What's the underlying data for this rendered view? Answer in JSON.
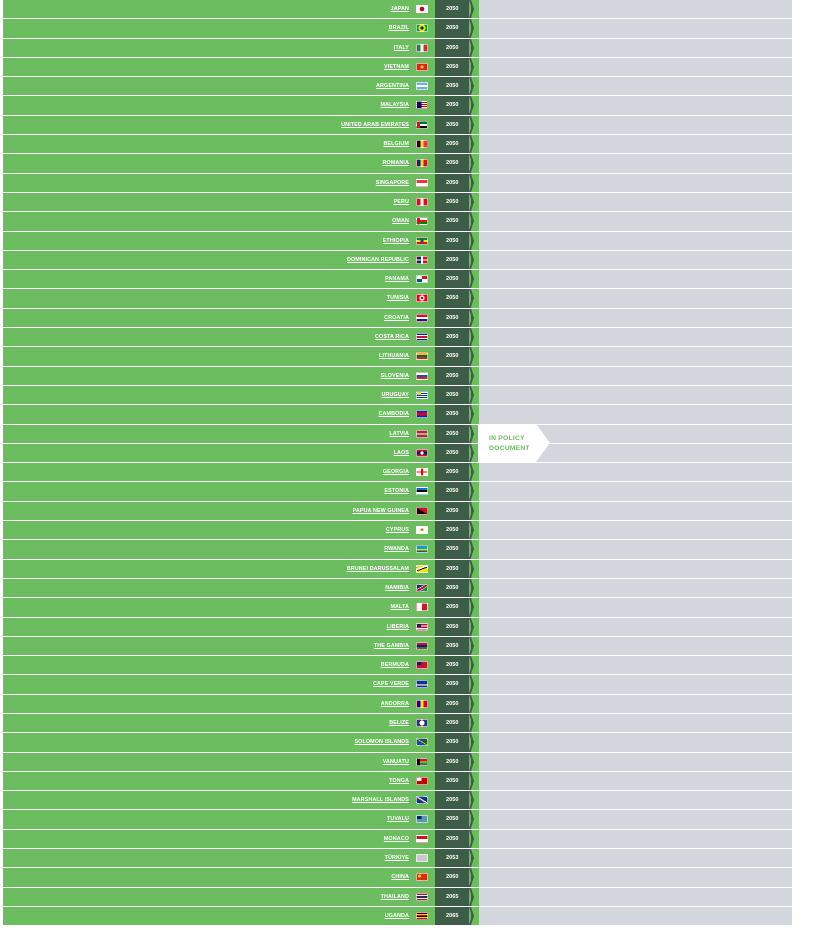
{
  "rows": [
    {
      "country": "JAPAN",
      "year": "2050",
      "flag": "japan-flag"
    },
    {
      "country": "BRAZIL",
      "year": "2050",
      "flag": "brazil-flag"
    },
    {
      "country": "ITALY",
      "year": "2050",
      "flag": "italy-flag"
    },
    {
      "country": "VIETNAM",
      "year": "2050",
      "flag": "vietnam-flag"
    },
    {
      "country": "ARGENTINA",
      "year": "2050",
      "flag": "argentina-flag"
    },
    {
      "country": "MALAYSIA",
      "year": "2050",
      "flag": "malaysia-flag"
    },
    {
      "country": "UNITED ARAB EMIRATES",
      "year": "2050",
      "flag": "uae-flag"
    },
    {
      "country": "BELGIUM",
      "year": "2050",
      "flag": "belgium-flag"
    },
    {
      "country": "ROMANIA",
      "year": "2050",
      "flag": "romania-flag"
    },
    {
      "country": "SINGAPORE",
      "year": "2050",
      "flag": "singapore-flag"
    },
    {
      "country": "PERU",
      "year": "2050",
      "flag": "peru-flag"
    },
    {
      "country": "OMAN",
      "year": "2050",
      "flag": "oman-flag"
    },
    {
      "country": "ETHIOPIA",
      "year": "2050",
      "flag": "ethiopia-flag"
    },
    {
      "country": "DOMINICAN REPUBLIC",
      "year": "2050",
      "flag": "dominican-republic-flag"
    },
    {
      "country": "PANAMA",
      "year": "2050",
      "flag": "panama-flag"
    },
    {
      "country": "TUNISIA",
      "year": "2050",
      "flag": "tunisia-flag"
    },
    {
      "country": "CROATIA",
      "year": "2050",
      "flag": "croatia-flag"
    },
    {
      "country": "COSTA RICA",
      "year": "2050",
      "flag": "costa-rica-flag"
    },
    {
      "country": "LITHUANIA",
      "year": "2050",
      "flag": "lithuania-flag"
    },
    {
      "country": "SLOVENIA",
      "year": "2050",
      "flag": "slovenia-flag"
    },
    {
      "country": "URUGUAY",
      "year": "2050",
      "flag": "uruguay-flag"
    },
    {
      "country": "CAMBODIA",
      "year": "2050",
      "flag": "cambodia-flag"
    },
    {
      "country": "LATVIA",
      "year": "2050",
      "flag": "latvia-flag"
    },
    {
      "country": "LAOS",
      "year": "2050",
      "flag": "laos-flag"
    },
    {
      "country": "GEORGIA",
      "year": "2050",
      "flag": "georgia-flag"
    },
    {
      "country": "ESTONIA",
      "year": "2050",
      "flag": "estonia-flag"
    },
    {
      "country": "PAPUA NEW GUINEA",
      "year": "2050",
      "flag": "papua-new-guinea-flag"
    },
    {
      "country": "CYPRUS",
      "year": "2050",
      "flag": "cyprus-flag"
    },
    {
      "country": "RWANDA",
      "year": "2050",
      "flag": "rwanda-flag"
    },
    {
      "country": "BRUNEI DARUSSALAM",
      "year": "2050",
      "flag": "brunei-flag"
    },
    {
      "country": "NAMIBIA",
      "year": "2050",
      "flag": "namibia-flag"
    },
    {
      "country": "MALTA",
      "year": "2050",
      "flag": "malta-flag"
    },
    {
      "country": "LIBERIA",
      "year": "2050",
      "flag": "liberia-flag"
    },
    {
      "country": "THE GAMBIA",
      "year": "2050",
      "flag": "gambia-flag"
    },
    {
      "country": "BERMUDA",
      "year": "2050",
      "flag": "bermuda-flag"
    },
    {
      "country": "CAPE VERDE",
      "year": "2050",
      "flag": "cape-verde-flag"
    },
    {
      "country": "ANDORRA",
      "year": "2050",
      "flag": "andorra-flag"
    },
    {
      "country": "BELIZE",
      "year": "2050",
      "flag": "belize-flag"
    },
    {
      "country": "SOLOMON ISLANDS",
      "year": "2050",
      "flag": "solomon-islands-flag"
    },
    {
      "country": "VANUATU",
      "year": "2050",
      "flag": "vanuatu-flag"
    },
    {
      "country": "TONGA",
      "year": "2050",
      "flag": "tonga-flag"
    },
    {
      "country": "MARSHALL ISLANDS",
      "year": "2050",
      "flag": "marshall-islands-flag"
    },
    {
      "country": "TUVALU",
      "year": "2050",
      "flag": "tuvalu-flag"
    },
    {
      "country": "MONACO",
      "year": "2050",
      "flag": "monaco-flag"
    },
    {
      "country": "TÜRKIYE",
      "year": "2053",
      "flag": "turkiye-flag"
    },
    {
      "country": "CHINA",
      "year": "2060",
      "flag": "china-flag"
    },
    {
      "country": "THAILAND",
      "year": "2065",
      "flag": "thailand-flag"
    },
    {
      "country": "UGANDA",
      "year": "2065",
      "flag": "uganda-flag"
    }
  ],
  "badge": {
    "line1": "IN POLICY",
    "line2": "DOCUMENT"
  },
  "colors": {
    "green": "#6cbd5f",
    "dark_green": "#3e5d49",
    "grey": "#d3d6dd",
    "white": "#ffffff"
  }
}
